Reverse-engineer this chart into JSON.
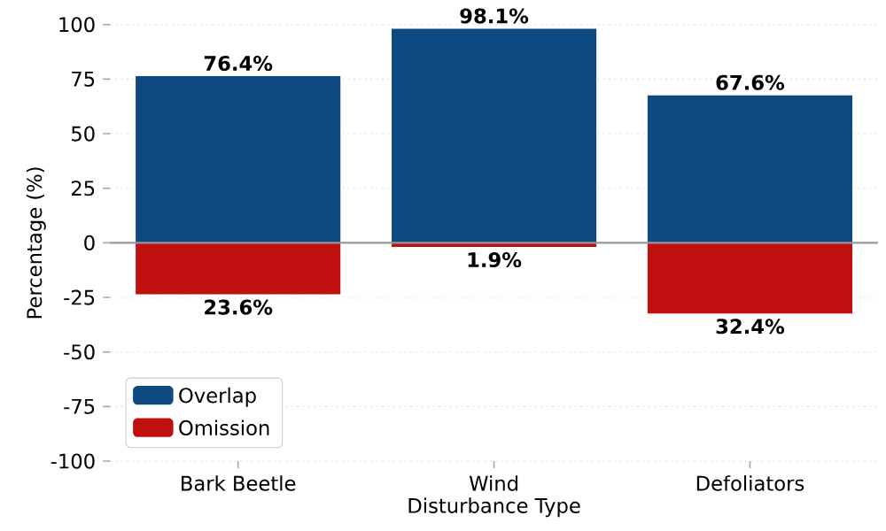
{
  "chart_data": {
    "type": "bar",
    "xlabel": "Disturbance Type",
    "ylabel": "Percentage (%)",
    "categories": [
      "Bark Beetle",
      "Wind",
      "Defoliators"
    ],
    "series": [
      {
        "name": "Overlap",
        "color": "#0e4a80",
        "values": [
          76.4,
          98.1,
          67.6
        ],
        "value_labels": [
          "76.4%",
          "98.1%",
          "67.6%"
        ]
      },
      {
        "name": "Omission",
        "color": "#c00f0f",
        "values": [
          -23.6,
          -1.9,
          -32.4
        ]
      }
    ],
    "annotations": [
      {
        "text": "23.6%",
        "x": "Bark Beetle",
        "y": -23.6
      },
      {
        "text": "1.9%",
        "x": "Wind",
        "y": -1.9
      },
      {
        "text": "32.4%",
        "x": "Defoliators",
        "y": -32.4
      }
    ],
    "stacked": true,
    "ylim": [
      -100,
      100
    ],
    "yticks": [
      -100,
      -75,
      -50,
      -25,
      0,
      25,
      50,
      75,
      100
    ],
    "grid": "y",
    "legend": "bottom left"
  }
}
